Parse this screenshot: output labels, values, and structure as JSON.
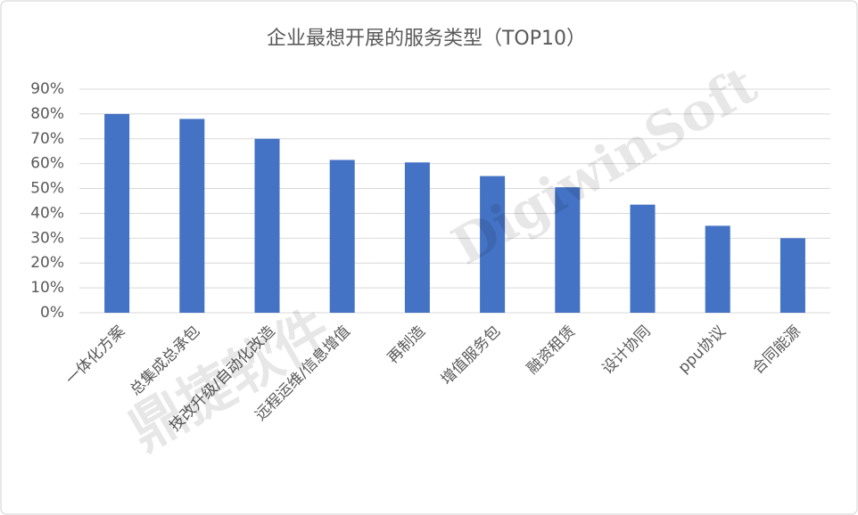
{
  "chart_data": {
    "type": "bar",
    "title": "企业最想开展的服务类型（TOP10）",
    "categories": [
      "一体化方案",
      "总集成总承包",
      "技改升级/自动化改造",
      "远程运维/信息增值",
      "再制造",
      "增值服务包",
      "融资租赁",
      "设计协同",
      "ppu协议",
      "合同能源"
    ],
    "values": [
      80,
      78,
      70,
      61.5,
      60.5,
      55,
      50.5,
      43.5,
      35,
      30
    ],
    "color": "#4472c4",
    "ylim": [
      0,
      90
    ],
    "yticks": [
      {
        "value": 0,
        "label": "0%"
      },
      {
        "value": 10,
        "label": "10%"
      },
      {
        "value": 20,
        "label": "20%"
      },
      {
        "value": 30,
        "label": "30%"
      },
      {
        "value": 40,
        "label": "40%"
      },
      {
        "value": 50,
        "label": "50%"
      },
      {
        "value": 60,
        "label": "60%"
      },
      {
        "value": 70,
        "label": "70%"
      },
      {
        "value": 80,
        "label": "80%"
      },
      {
        "value": 90,
        "label": "90%"
      }
    ],
    "grid": true,
    "watermarks": [
      "DigiwinSoft",
      "鼎捷软件"
    ]
  }
}
